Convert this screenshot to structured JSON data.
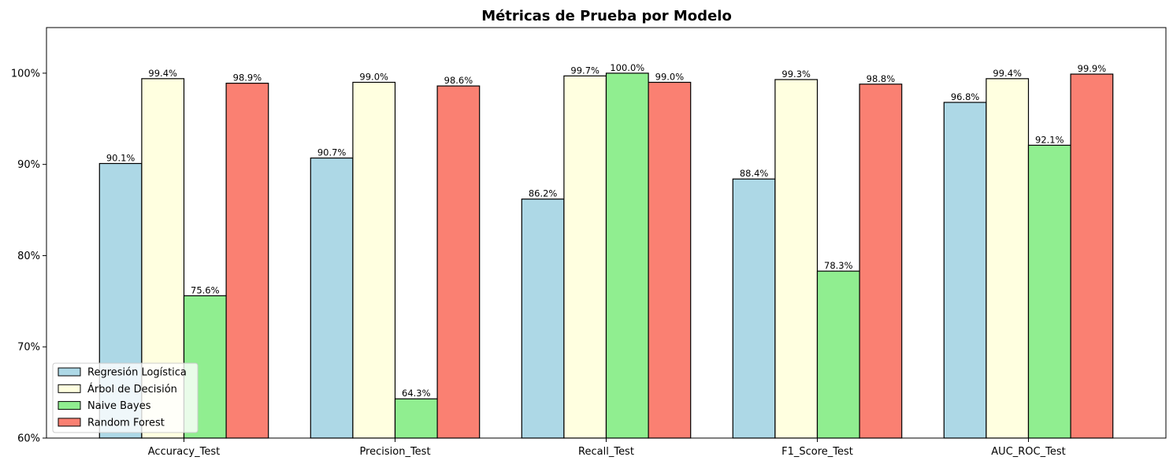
{
  "chart_data": {
    "type": "bar",
    "title": "Métricas de Prueba por Modelo",
    "xlabel": "",
    "ylabel": "",
    "categories": [
      "Accuracy_Test",
      "Precision_Test",
      "Recall_Test",
      "F1_Score_Test",
      "AUC_ROC_Test"
    ],
    "series": [
      {
        "name": "Regresión Logística",
        "color": "#add8e6",
        "values": [
          90.1,
          90.7,
          86.2,
          88.4,
          96.8
        ],
        "labels": [
          "90.1%",
          "90.7%",
          "86.2%",
          "88.4%",
          "96.8%"
        ]
      },
      {
        "name": "Árbol de Decisión",
        "color": "#ffffe0",
        "values": [
          99.4,
          99.0,
          99.7,
          99.3,
          99.4
        ],
        "labels": [
          "99.4%",
          "99.0%",
          "99.7%",
          "99.3%",
          "99.4%"
        ]
      },
      {
        "name": "Naive Bayes",
        "color": "#90ee90",
        "values": [
          75.6,
          64.3,
          100.0,
          78.3,
          92.1
        ],
        "labels": [
          "75.6%",
          "64.3%",
          "100.0%",
          "78.3%",
          "92.1%"
        ]
      },
      {
        "name": "Random Forest",
        "color": "#fa8072",
        "values": [
          98.9,
          98.6,
          99.0,
          98.8,
          99.9
        ],
        "labels": [
          "98.9%",
          "98.6%",
          "99.0%",
          "98.8%",
          "99.9%"
        ]
      }
    ],
    "ylim": [
      60,
      105
    ],
    "yticks": [
      60,
      70,
      80,
      90,
      100
    ],
    "ytick_labels": [
      "60%",
      "70%",
      "80%",
      "90%",
      "100%"
    ],
    "grid": false,
    "legend_position": "lower-left"
  }
}
